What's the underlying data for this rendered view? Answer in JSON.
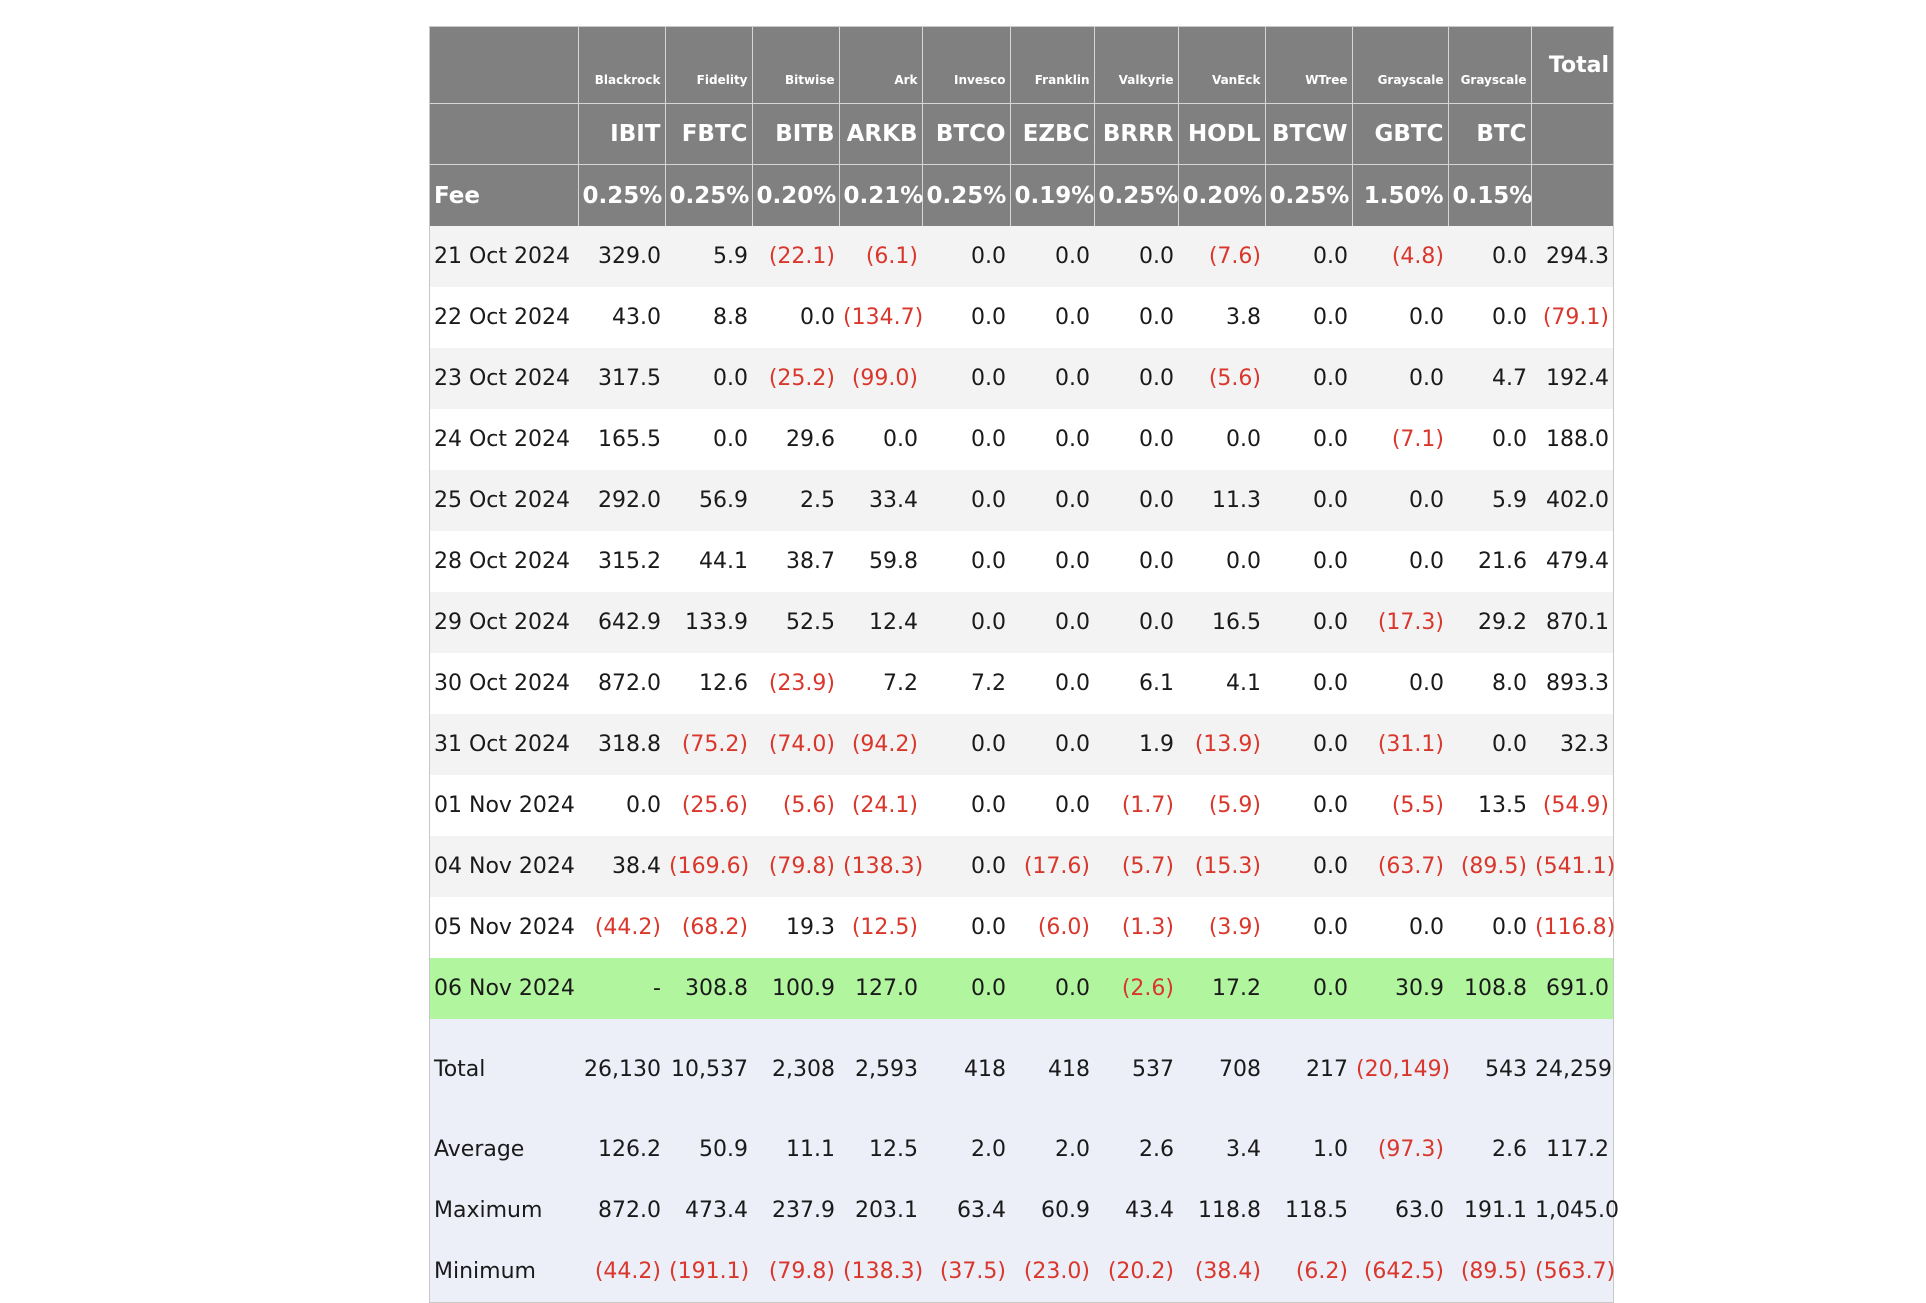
{
  "header": {
    "total_label": "Total",
    "fee_label": "Fee",
    "issuers": [
      "Blackrock",
      "Fidelity",
      "Bitwise",
      "Ark",
      "Invesco",
      "Franklin",
      "Valkyrie",
      "VanEck",
      "WTree",
      "Grayscale",
      "Grayscale"
    ],
    "tickers": [
      "IBIT",
      "FBTC",
      "BITB",
      "ARKB",
      "BTCO",
      "EZBC",
      "BRRR",
      "HODL",
      "BTCW",
      "GBTC",
      "BTC"
    ],
    "fees": [
      "0.25%",
      "0.25%",
      "0.20%",
      "0.21%",
      "0.25%",
      "0.19%",
      "0.25%",
      "0.20%",
      "0.25%",
      "1.50%",
      "0.15%"
    ]
  },
  "rows": [
    {
      "date": "21 Oct 2024",
      "values": [
        "329.0",
        "5.9",
        "(22.1)",
        "(6.1)",
        "0.0",
        "0.0",
        "0.0",
        "(7.6)",
        "0.0",
        "(4.8)",
        "0.0",
        "294.3"
      ]
    },
    {
      "date": "22 Oct 2024",
      "values": [
        "43.0",
        "8.8",
        "0.0",
        "(134.7)",
        "0.0",
        "0.0",
        "0.0",
        "3.8",
        "0.0",
        "0.0",
        "0.0",
        "(79.1)"
      ]
    },
    {
      "date": "23 Oct 2024",
      "values": [
        "317.5",
        "0.0",
        "(25.2)",
        "(99.0)",
        "0.0",
        "0.0",
        "0.0",
        "(5.6)",
        "0.0",
        "0.0",
        "4.7",
        "192.4"
      ]
    },
    {
      "date": "24 Oct 2024",
      "values": [
        "165.5",
        "0.0",
        "29.6",
        "0.0",
        "0.0",
        "0.0",
        "0.0",
        "0.0",
        "0.0",
        "(7.1)",
        "0.0",
        "188.0"
      ]
    },
    {
      "date": "25 Oct 2024",
      "values": [
        "292.0",
        "56.9",
        "2.5",
        "33.4",
        "0.0",
        "0.0",
        "0.0",
        "11.3",
        "0.0",
        "0.0",
        "5.9",
        "402.0"
      ]
    },
    {
      "date": "28 Oct 2024",
      "values": [
        "315.2",
        "44.1",
        "38.7",
        "59.8",
        "0.0",
        "0.0",
        "0.0",
        "0.0",
        "0.0",
        "0.0",
        "21.6",
        "479.4"
      ]
    },
    {
      "date": "29 Oct 2024",
      "values": [
        "642.9",
        "133.9",
        "52.5",
        "12.4",
        "0.0",
        "0.0",
        "0.0",
        "16.5",
        "0.0",
        "(17.3)",
        "29.2",
        "870.1"
      ]
    },
    {
      "date": "30 Oct 2024",
      "values": [
        "872.0",
        "12.6",
        "(23.9)",
        "7.2",
        "7.2",
        "0.0",
        "6.1",
        "4.1",
        "0.0",
        "0.0",
        "8.0",
        "893.3"
      ]
    },
    {
      "date": "31 Oct 2024",
      "values": [
        "318.8",
        "(75.2)",
        "(74.0)",
        "(94.2)",
        "0.0",
        "0.0",
        "1.9",
        "(13.9)",
        "0.0",
        "(31.1)",
        "0.0",
        "32.3"
      ]
    },
    {
      "date": "01 Nov 2024",
      "values": [
        "0.0",
        "(25.6)",
        "(5.6)",
        "(24.1)",
        "0.0",
        "0.0",
        "(1.7)",
        "(5.9)",
        "0.0",
        "(5.5)",
        "13.5",
        "(54.9)"
      ]
    },
    {
      "date": "04 Nov 2024",
      "values": [
        "38.4",
        "(169.6)",
        "(79.8)",
        "(138.3)",
        "0.0",
        "(17.6)",
        "(5.7)",
        "(15.3)",
        "0.0",
        "(63.7)",
        "(89.5)",
        "(541.1)"
      ]
    },
    {
      "date": "05 Nov 2024",
      "values": [
        "(44.2)",
        "(68.2)",
        "19.3",
        "(12.5)",
        "0.0",
        "(6.0)",
        "(1.3)",
        "(3.9)",
        "0.0",
        "0.0",
        "0.0",
        "(116.8)"
      ]
    },
    {
      "date": "06 Nov 2024",
      "values": [
        "-",
        "308.8",
        "100.9",
        "127.0",
        "0.0",
        "0.0",
        "(2.6)",
        "17.2",
        "0.0",
        "30.9",
        "108.8",
        "691.0"
      ],
      "highlight": true
    }
  ],
  "stats": [
    {
      "label": "Total",
      "values": [
        "26,130",
        "10,537",
        "2,308",
        "2,593",
        "418",
        "418",
        "537",
        "708",
        "217",
        "(20,149)",
        "543",
        "24,259"
      ]
    },
    {
      "label": "Average",
      "values": [
        "126.2",
        "50.9",
        "11.1",
        "12.5",
        "2.0",
        "2.0",
        "2.6",
        "3.4",
        "1.0",
        "(97.3)",
        "2.6",
        "117.2"
      ]
    },
    {
      "label": "Maximum",
      "values": [
        "872.0",
        "473.4",
        "237.9",
        "203.1",
        "63.4",
        "60.9",
        "43.4",
        "118.8",
        "118.5",
        "63.0",
        "191.1",
        "1,045.0"
      ]
    },
    {
      "label": "Minimum",
      "values": [
        "(44.2)",
        "(191.1)",
        "(79.8)",
        "(138.3)",
        "(37.5)",
        "(23.0)",
        "(20.2)",
        "(38.4)",
        "(6.2)",
        "(642.5)",
        "(89.5)",
        "(563.7)"
      ]
    }
  ],
  "colors": {
    "header_bg": "#808080",
    "negative": "#d9372c",
    "highlight": "#b2f59f",
    "stats_bg": "#eceef8",
    "stripe": "#f3f3f3"
  }
}
